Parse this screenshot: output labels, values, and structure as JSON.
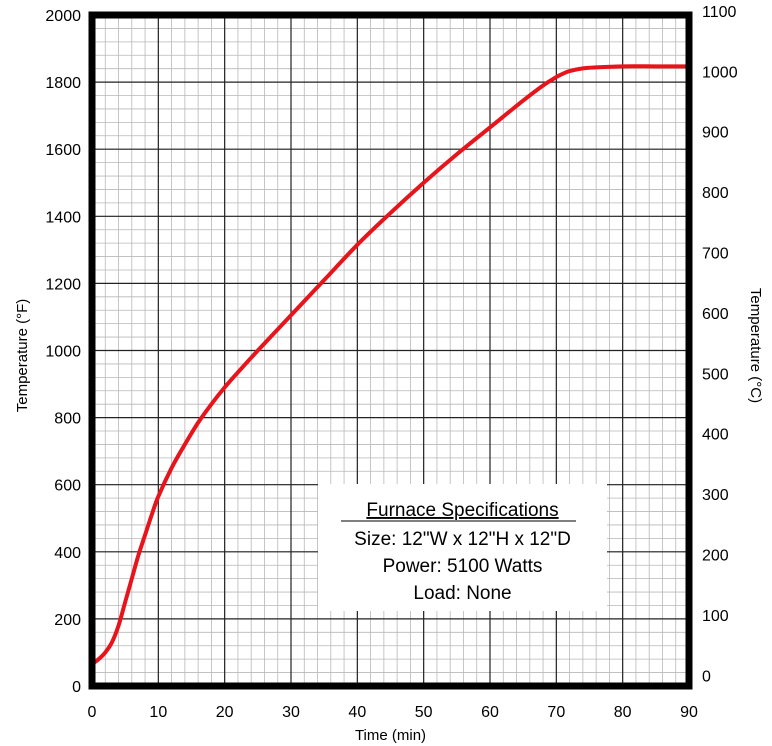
{
  "chart_data": {
    "type": "line",
    "xlabel": "Time (min)",
    "ylabel": "Temperature (°F)",
    "y2label": "Temperature (°C)",
    "xlim": [
      0,
      90
    ],
    "ylim": [
      0,
      2000
    ],
    "y2lim": [
      -17.8,
      1093.3
    ],
    "x_ticks": [
      "0",
      "10",
      "20",
      "30",
      "40",
      "50",
      "60",
      "70",
      "80",
      "90"
    ],
    "y_ticks": [
      "0",
      "200",
      "400",
      "600",
      "800",
      "1000",
      "1200",
      "1400",
      "1600",
      "1800",
      "2000"
    ],
    "y2_ticks": [
      "0",
      "100",
      "200",
      "300",
      "400",
      "500",
      "600",
      "700",
      "800",
      "900",
      "1000",
      "1100"
    ],
    "grid": true,
    "series": [
      {
        "color": "#e8141b",
        "x": [
          0,
          1,
          2,
          3,
          4,
          5,
          6,
          7,
          8,
          9,
          10,
          12,
          14,
          16,
          18,
          20,
          22,
          25,
          30,
          35,
          40,
          45,
          50,
          55,
          60,
          65,
          68,
          70,
          71,
          72,
          74,
          76,
          80,
          85,
          90
        ],
        "y": [
          65,
          80,
          100,
          130,
          180,
          250,
          320,
          390,
          450,
          510,
          565,
          650,
          720,
          785,
          840,
          890,
          935,
          1000,
          1105,
          1210,
          1315,
          1410,
          1500,
          1585,
          1665,
          1745,
          1790,
          1815,
          1825,
          1833,
          1841,
          1844,
          1847,
          1847,
          1847
        ]
      }
    ],
    "annotation": {
      "title": "Furnace Specifications",
      "lines": [
        "Size: 12\"W x 12\"H x 12\"D",
        "Power: 5100 Watts",
        "Load: None"
      ]
    }
  }
}
